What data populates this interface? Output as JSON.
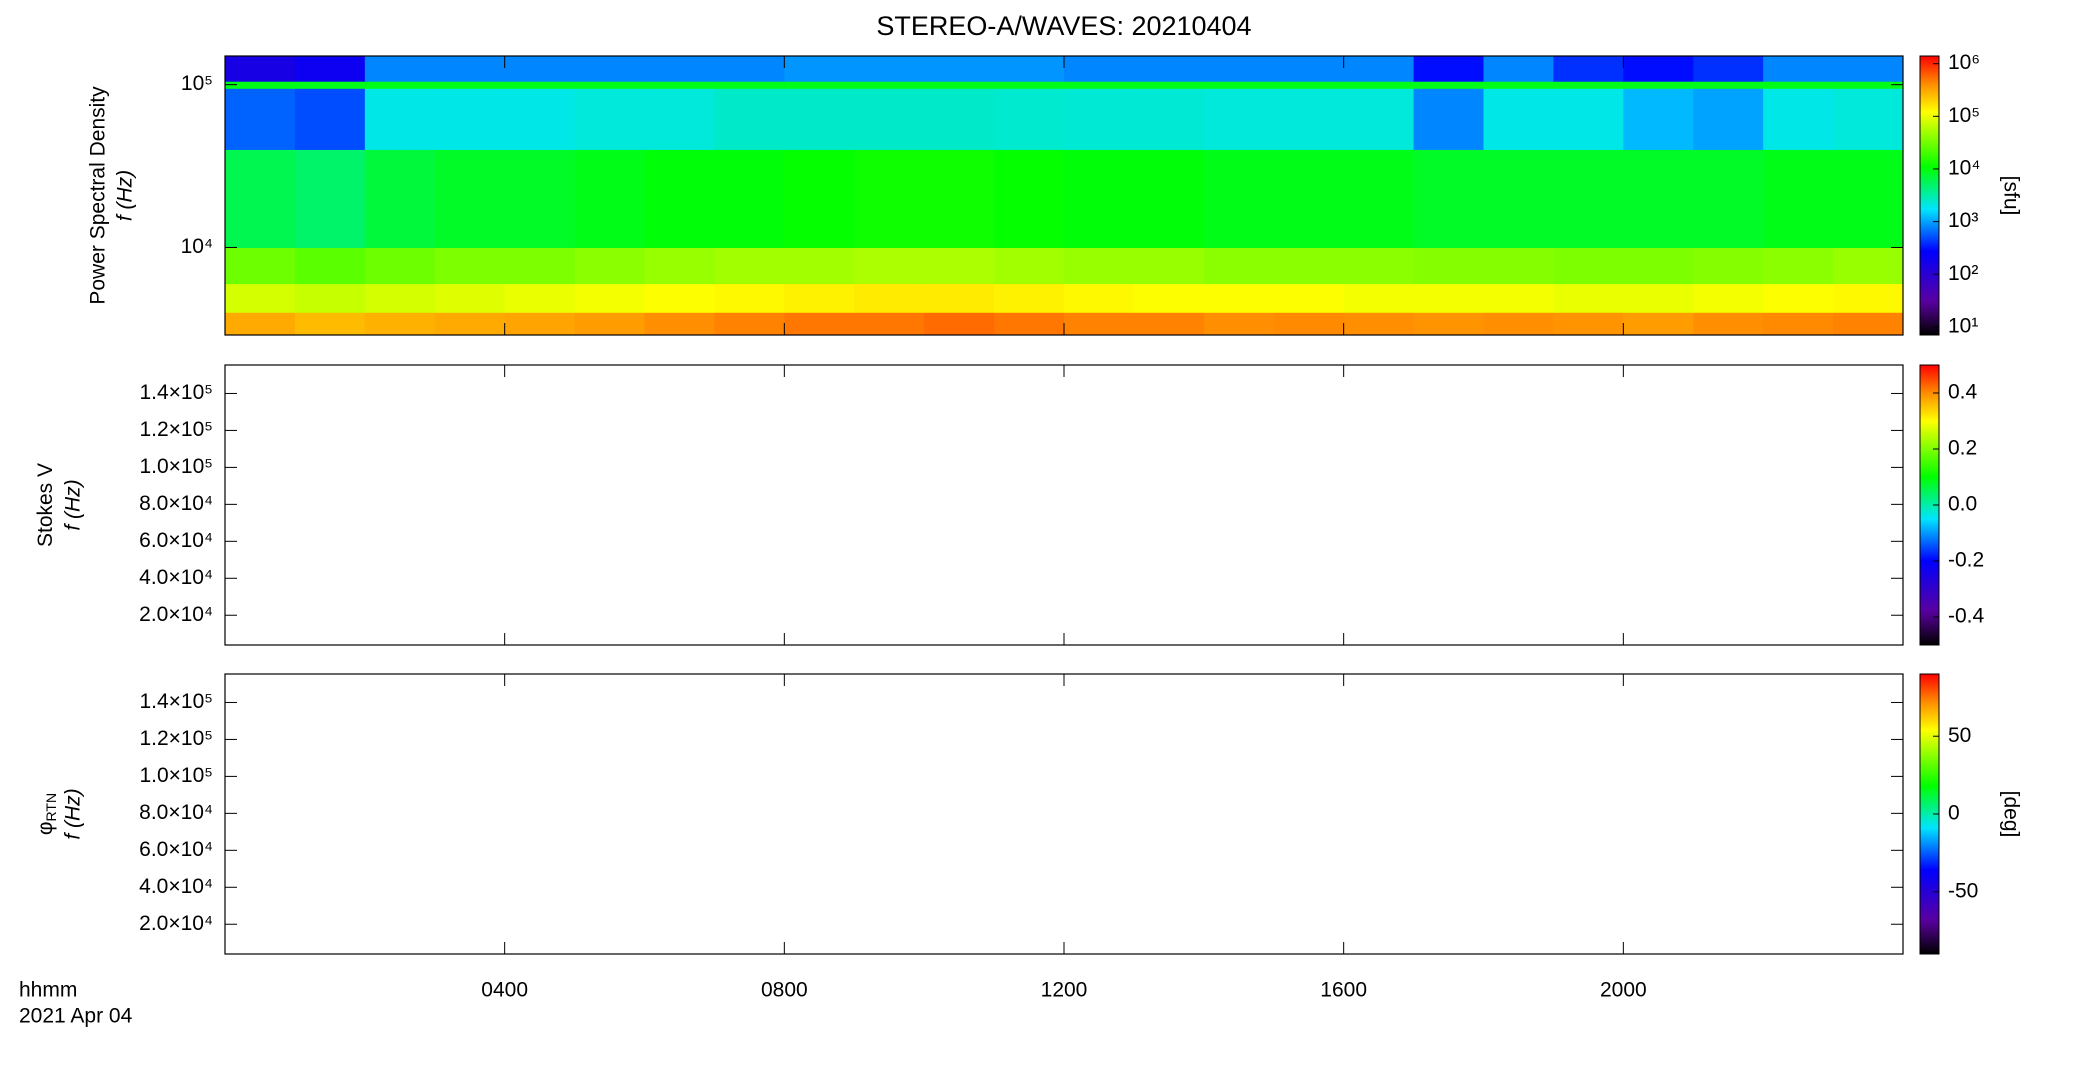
{
  "title": "STEREO-A/WAVES: 20210404",
  "x_header": "hhmm",
  "x_date": "2021 Apr 04",
  "chart_data": [
    {
      "type": "spectrogram",
      "ylabel": "Power Spectral Density",
      "ylabel2": "f (Hz)",
      "xlim": [
        0,
        24
      ],
      "xticks": [
        4,
        8,
        12,
        16,
        20
      ],
      "ylog": true,
      "ylim": [
        2900,
        150000
      ],
      "yticks": [
        {
          "value": 10000,
          "label": "10⁴"
        },
        {
          "value": 100000,
          "label": "10⁵"
        }
      ],
      "x_bins": [
        0,
        1,
        2,
        3,
        4,
        5,
        6,
        7,
        8,
        9,
        10,
        11,
        12,
        13,
        14,
        15,
        16,
        17,
        18,
        19,
        20,
        21,
        22,
        23,
        24
      ],
      "y_bins": [
        2900,
        4000,
        6000,
        10000,
        40000,
        95000,
        105000,
        150000
      ],
      "values": [
        [
          300000,
          250000,
          280000,
          300000,
          320000,
          350000,
          400000,
          450000,
          500000,
          500000,
          550000,
          500000,
          450000,
          450000,
          400000,
          420000,
          400000,
          380000,
          400000,
          380000,
          350000,
          400000,
          420000,
          450000
        ],
        [
          80000,
          70000,
          80000,
          90000,
          100000,
          110000,
          120000,
          130000,
          140000,
          150000,
          150000,
          140000,
          130000,
          120000,
          120000,
          120000,
          110000,
          110000,
          110000,
          100000,
          100000,
          110000,
          120000,
          130000
        ],
        [
          30000,
          25000,
          30000,
          35000,
          35000,
          40000,
          45000,
          50000,
          50000,
          55000,
          55000,
          50000,
          45000,
          45000,
          40000,
          40000,
          40000,
          38000,
          38000,
          35000,
          35000,
          38000,
          40000,
          45000
        ],
        [
          6000,
          5000,
          7000,
          8000,
          8000,
          9000,
          10000,
          10000,
          11000,
          12000,
          12000,
          11000,
          10000,
          10000,
          9000,
          9000,
          9000,
          8000,
          8000,
          8000,
          8000,
          8000,
          9000,
          9000
        ],
        [
          600,
          500,
          2000,
          2000,
          2000,
          2200,
          2200,
          2500,
          2500,
          2500,
          2500,
          2400,
          2300,
          2300,
          2200,
          2200,
          2200,
          800,
          2000,
          2000,
          1200,
          1000,
          2000,
          2200
        ],
        [
          9000,
          9000,
          9000,
          9000,
          9000,
          9000,
          9000,
          9000,
          9000,
          9000,
          9000,
          9000,
          9000,
          9000,
          9000,
          9000,
          9000,
          9000,
          9000,
          9000,
          9000,
          9000,
          9000,
          9000
        ],
        [
          150,
          200,
          800,
          800,
          800,
          800,
          800,
          800,
          900,
          900,
          900,
          900,
          800,
          800,
          800,
          800,
          800,
          300,
          800,
          400,
          300,
          400,
          800,
          800
        ]
      ],
      "colormap": "rainbow",
      "clog": true,
      "clim": [
        7,
        1400000
      ],
      "cticks": [
        {
          "value": 10,
          "label": "10¹"
        },
        {
          "value": 100,
          "label": "10²"
        },
        {
          "value": 1000,
          "label": "10³"
        },
        {
          "value": 10000,
          "label": "10⁴"
        },
        {
          "value": 100000,
          "label": "10⁵"
        },
        {
          "value": 1000000,
          "label": "10⁶"
        }
      ],
      "clabel": "[sfu]"
    },
    {
      "type": "spectrogram",
      "ylabel": "Stokes V",
      "ylabel2": "f (Hz)",
      "xlim": [
        0,
        24
      ],
      "xticks": [
        4,
        8,
        12,
        16,
        20
      ],
      "ylog": false,
      "ylim": [
        3900,
        155400
      ],
      "yticks": [
        {
          "value": 20000,
          "label": "2.0×10⁴"
        },
        {
          "value": 40000,
          "label": "4.0×10⁴"
        },
        {
          "value": 60000,
          "label": "6.0×10⁴"
        },
        {
          "value": 80000,
          "label": "8.0×10⁴"
        },
        {
          "value": 100000,
          "label": "1.0×10⁵"
        },
        {
          "value": 120000,
          "label": "1.2×10⁵"
        },
        {
          "value": 140000,
          "label": "1.4×10⁵"
        }
      ],
      "values": [],
      "colormap": "rainbow",
      "clog": false,
      "clim": [
        -0.5,
        0.5
      ],
      "cticks": [
        -0.4,
        -0.2,
        {
          "value": 0,
          "label": "0.0"
        },
        0.2,
        0.4
      ]
    },
    {
      "type": "spectrogram",
      "ylabel": "φ",
      "ylabel_sub": "RTN",
      "ylabel2": "f (Hz)",
      "xlim": [
        0,
        24
      ],
      "xticks": [
        {
          "value": 4,
          "label": "0400"
        },
        {
          "value": 8,
          "label": "0800"
        },
        {
          "value": 12,
          "label": "1200"
        },
        {
          "value": 16,
          "label": "1600"
        },
        {
          "value": 20,
          "label": "2000"
        }
      ],
      "ylog": false,
      "ylim": [
        3900,
        155400
      ],
      "yticks": [
        {
          "value": 20000,
          "label": "2.0×10⁴"
        },
        {
          "value": 40000,
          "label": "4.0×10⁴"
        },
        {
          "value": 60000,
          "label": "6.0×10⁴"
        },
        {
          "value": 80000,
          "label": "8.0×10⁴"
        },
        {
          "value": 100000,
          "label": "1.0×10⁵"
        },
        {
          "value": 120000,
          "label": "1.2×10⁵"
        },
        {
          "value": 140000,
          "label": "1.4×10⁵"
        }
      ],
      "values": [],
      "colormap": "rainbow",
      "clog": false,
      "clim": [
        -90,
        90
      ],
      "cticks": [
        -50,
        0,
        50
      ],
      "clabel": "[deg]"
    }
  ]
}
